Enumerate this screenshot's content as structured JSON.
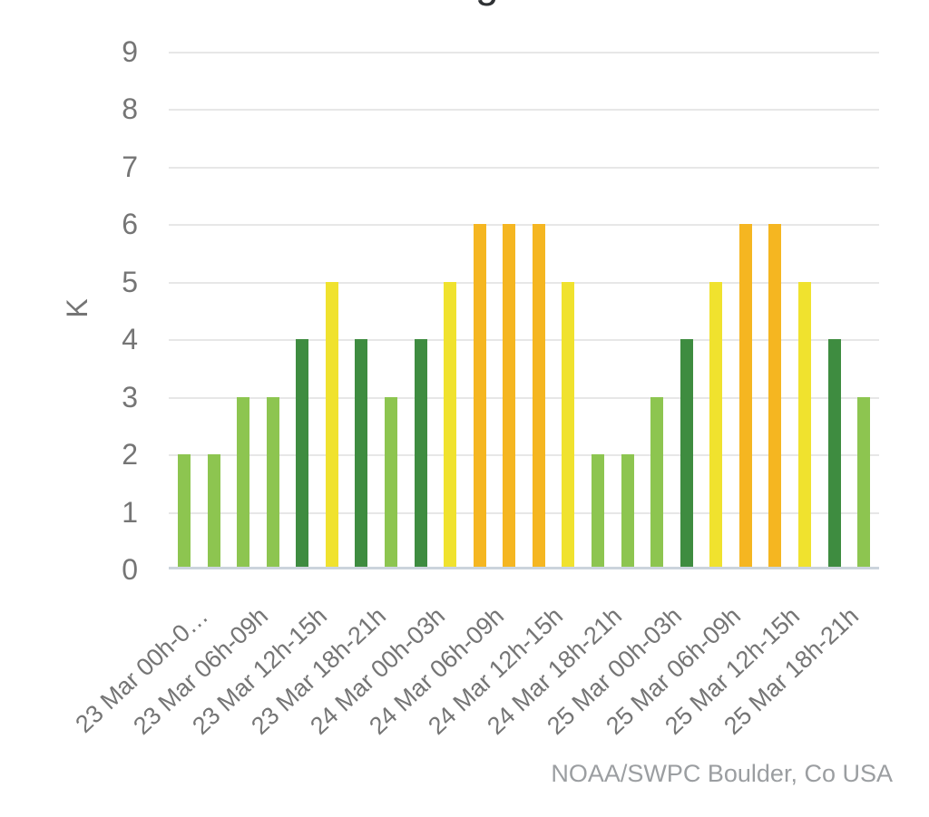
{
  "title_visible_fragment": "g",
  "attribution": "NOAA/SWPC Boulder, Co USA",
  "chart_data": {
    "type": "bar",
    "ylabel": "K",
    "ylim": [
      0,
      9
    ],
    "grid": true,
    "y_tick_labels": [
      "9",
      "8",
      "7",
      "6",
      "5",
      "4",
      "3",
      "2",
      "1",
      "0"
    ],
    "x_tick_labels": [
      "23 Mar 00h-0…",
      "23 Mar 06h-09h",
      "23 Mar 12h-15h",
      "23 Mar 18h-21h",
      "24 Mar 00h-03h",
      "24 Mar 06h-09h",
      "24 Mar 12h-15h",
      "24 Mar 18h-21h",
      "25 Mar 00h-03h",
      "25 Mar 06h-09h",
      "25 Mar 12h-15h",
      "25 Mar 18h-21h"
    ],
    "x_interval_hours": 3,
    "values": [
      2,
      2,
      3,
      3,
      4,
      5,
      4,
      3,
      4,
      5,
      6,
      6,
      6,
      5,
      2,
      2,
      3,
      4,
      5,
      6,
      6,
      5,
      4,
      3
    ],
    "value_colors": {
      "2": "#8dc550",
      "3": "#8dc550",
      "4": "#3e8c40",
      "5": "#f0e22e",
      "6": "#f5b621"
    },
    "gridline_color": "#e7e7e7",
    "baseline_color": "#cbd4dc",
    "axis_text_color": "#757575",
    "attribution_color": "#9b9ea1"
  }
}
